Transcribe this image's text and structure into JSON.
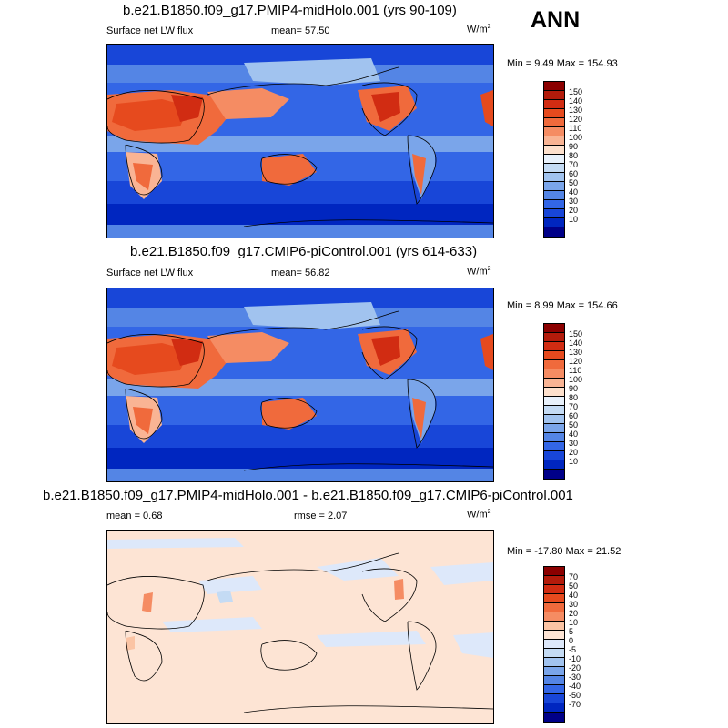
{
  "season": "ANN",
  "panels": [
    {
      "title": "b.e21.B1850.f09_g17.PMIP4-midHolo.001 (yrs 90-109)",
      "variable": "Surface net LW flux",
      "stat1": "mean=  57.50",
      "stat2": "",
      "units": "W/m",
      "units_sup": "2",
      "minmax": "Min =   9.49 Max = 154.93",
      "colorbar_labels": [
        "150",
        "140",
        "130",
        "120",
        "110",
        "100",
        "90",
        "80",
        "70",
        "60",
        "50",
        "40",
        "30",
        "20",
        "10"
      ],
      "colorbar_colors": [
        "#8b0000",
        "#b31b0b",
        "#d12c12",
        "#e64a1e",
        "#f06a3c",
        "#f58c63",
        "#f9b494",
        "#fde0cc",
        "#e8f1fb",
        "#c4dbf4",
        "#a1c3ef",
        "#7aa5ea",
        "#5485e5",
        "#3366e6",
        "#1846d8",
        "#0026c0",
        "#000088"
      ]
    },
    {
      "title": "b.e21.B1850.f09_g17.CMIP6-piControl.001 (yrs 614-633)",
      "variable": "Surface net LW flux",
      "stat1": "mean=  56.82",
      "stat2": "",
      "units": "W/m",
      "units_sup": "2",
      "minmax": "Min =   8.99 Max = 154.66",
      "colorbar_labels": [
        "150",
        "140",
        "130",
        "120",
        "110",
        "100",
        "90",
        "80",
        "70",
        "60",
        "50",
        "40",
        "30",
        "20",
        "10"
      ],
      "colorbar_colors": [
        "#8b0000",
        "#b31b0b",
        "#d12c12",
        "#e64a1e",
        "#f06a3c",
        "#f58c63",
        "#f9b494",
        "#fde0cc",
        "#e8f1fb",
        "#c4dbf4",
        "#a1c3ef",
        "#7aa5ea",
        "#5485e5",
        "#3366e6",
        "#1846d8",
        "#0026c0",
        "#000088"
      ]
    },
    {
      "title": "b.e21.B1850.f09_g17.PMIP4-midHolo.001 - b.e21.B1850.f09_g17.CMIP6-piControl.001",
      "variable": "",
      "stat1": "mean =   0.68",
      "stat2": "rmse =   2.07",
      "units": "W/m",
      "units_sup": "2",
      "minmax": "Min = -17.80 Max =  21.52",
      "colorbar_labels": [
        "70",
        "50",
        "40",
        "30",
        "20",
        "10",
        "5",
        "0",
        "-5",
        "-10",
        "-20",
        "-30",
        "-40",
        "-50",
        "-70"
      ],
      "colorbar_colors": [
        "#8b0000",
        "#b31b0b",
        "#d12c12",
        "#e64a1e",
        "#f06a3c",
        "#f58c63",
        "#fbc4a4",
        "#fde4d4",
        "#dde8fa",
        "#c4dbf4",
        "#a1c3ef",
        "#7aa5ea",
        "#5485e5",
        "#3366e6",
        "#1846d8",
        "#0026c0",
        "#000088"
      ]
    }
  ]
}
